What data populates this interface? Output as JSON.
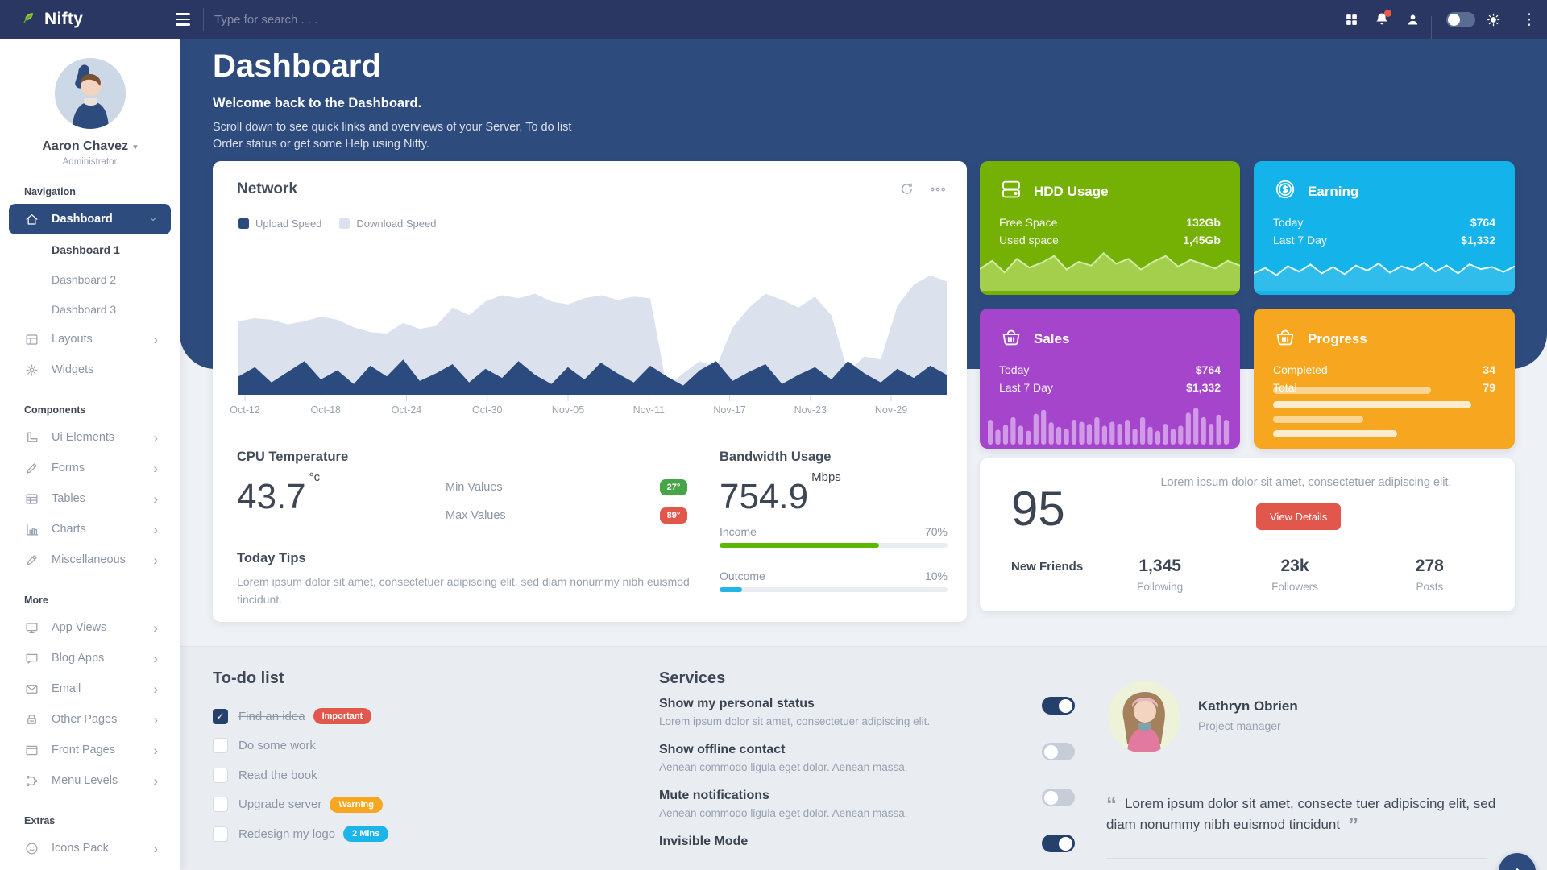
{
  "navbar": {
    "brand": "Nifty",
    "search_placeholder": "Type for search . . ."
  },
  "sidebar": {
    "user": {
      "name": "Aaron Chavez",
      "role": "Administrator"
    },
    "sections": [
      {
        "label": "Navigation",
        "items": [
          {
            "label": "Dashboard",
            "icon": "home",
            "active": true,
            "expanded": true,
            "children": [
              {
                "label": "Dashboard 1",
                "current": true
              },
              {
                "label": "Dashboard 2",
                "current": false
              },
              {
                "label": "Dashboard 3",
                "current": false
              }
            ]
          },
          {
            "label": "Layouts",
            "icon": "layout",
            "chevron": true
          },
          {
            "label": "Widgets",
            "icon": "widgets",
            "chevron": false
          }
        ]
      },
      {
        "label": "Components",
        "items": [
          {
            "label": "Ui Elements",
            "icon": "ruler",
            "chevron": true
          },
          {
            "label": "Forms",
            "icon": "pencil",
            "chevron": true
          },
          {
            "label": "Tables",
            "icon": "table",
            "chevron": true
          },
          {
            "label": "Charts",
            "icon": "chart",
            "chevron": true
          },
          {
            "label": "Miscellaneous",
            "icon": "pen",
            "chevron": true
          }
        ]
      },
      {
        "label": "More",
        "items": [
          {
            "label": "App Views",
            "icon": "monitor",
            "chevron": true
          },
          {
            "label": "Blog Apps",
            "icon": "chat",
            "chevron": true
          },
          {
            "label": "Email",
            "icon": "mail",
            "chevron": true
          },
          {
            "label": "Other Pages",
            "icon": "printer",
            "chevron": true
          },
          {
            "label": "Front Pages",
            "icon": "window",
            "chevron": true
          },
          {
            "label": "Menu Levels",
            "icon": "levels",
            "chevron": true
          }
        ]
      },
      {
        "label": "Extras",
        "items": [
          {
            "label": "Icons Pack",
            "icon": "smile",
            "chevron": true
          }
        ]
      }
    ]
  },
  "header": {
    "title": "Dashboard",
    "subtitle": "Welcome back to the Dashboard.",
    "description_lines": [
      "Scroll down to see quick links and overviews of your Server, To do list",
      "Order status or get some Help using Nifty."
    ]
  },
  "network": {
    "title": "Network"
  },
  "cpu": {
    "title": "CPU Temperature",
    "value": "43.7",
    "unit": "°c",
    "min_label": "Min Values",
    "min_value": "27°",
    "min_color": "#47a447",
    "max_label": "Max Values",
    "max_value": "89°",
    "max_color": "#e2574c"
  },
  "tips": {
    "title": "Today Tips",
    "text": "Lorem ipsum dolor sit amet, consectetuer adipiscing elit, sed diam nonummy nibh euismod tincidunt."
  },
  "bandwidth": {
    "title": "Bandwidth Usage",
    "value": "754.9",
    "unit": "Mbps",
    "bars": [
      {
        "label": "Income",
        "percent": 70,
        "percent_label": "70%",
        "color": "#5cb807"
      },
      {
        "label": "Outcome",
        "percent": 10,
        "percent_label": "10%",
        "color": "#23b4e8"
      }
    ]
  },
  "stat_cards": [
    {
      "title": "HDD Usage",
      "icon": "harddrive",
      "color": "#75b105",
      "rows": [
        {
          "label": "Free Space",
          "value": "132Gb"
        },
        {
          "label": "Used space",
          "value": "1,45Gb"
        }
      ]
    },
    {
      "title": "Earning",
      "icon": "coin",
      "color": "#14b4ea",
      "rows": [
        {
          "label": "Today",
          "value": "$764"
        },
        {
          "label": "Last 7 Day",
          "value": "$1,332"
        }
      ]
    },
    {
      "title": "Sales",
      "icon": "basket",
      "color": "#a445cb",
      "rows": [
        {
          "label": "Today",
          "value": "$764"
        },
        {
          "label": "Last 7 Day",
          "value": "$1,332"
        }
      ]
    },
    {
      "title": "Progress",
      "icon": "basket",
      "color": "#f6a71f",
      "rows": [
        {
          "label": "Completed",
          "value": "34"
        },
        {
          "label": "Total",
          "value": "79"
        }
      ]
    }
  ],
  "profile": {
    "big_value": "95",
    "big_label": "New Friends",
    "text": "Lorem ipsum dolor sit amet, consectetuer adipiscing elit.",
    "button": "View Details",
    "stats": [
      {
        "value": "1,345",
        "label": "Following"
      },
      {
        "value": "23k",
        "label": "Followers"
      },
      {
        "value": "278",
        "label": "Posts"
      }
    ]
  },
  "todo": {
    "title": "To-do list",
    "items": [
      {
        "label": "Find an idea",
        "checked": true,
        "done": true,
        "badge": {
          "text": "Important",
          "color": "#e2574c"
        }
      },
      {
        "label": "Do some work",
        "checked": false,
        "done": false,
        "badge": null
      },
      {
        "label": "Read the book",
        "checked": false,
        "done": false,
        "badge": null
      },
      {
        "label": "Upgrade server",
        "checked": false,
        "done": false,
        "badge": {
          "text": "Warning",
          "color": "#f6a71f"
        }
      },
      {
        "label": "Redesign my logo",
        "checked": false,
        "done": false,
        "badge": {
          "text": "2 Mins",
          "color": "#1cb5ea"
        }
      }
    ]
  },
  "services": {
    "title": "Services",
    "items": [
      {
        "title": "Show my personal status",
        "desc": "Lorem ipsum dolor sit amet, consectetuer adipiscing elit.",
        "on": true
      },
      {
        "title": "Show offline contact",
        "desc": "Aenean commodo ligula eget dolor. Aenean massa.",
        "on": false
      },
      {
        "title": "Mute notifications",
        "desc": "Aenean commodo ligula eget dolor. Aenean massa.",
        "on": false
      },
      {
        "title": "Invisible Mode",
        "desc": "",
        "on": true
      }
    ]
  },
  "testimonial": {
    "name": "Kathryn Obrien",
    "role": "Project manager",
    "quote": "Lorem ipsum dolor sit amet, consecte tuer adipiscing elit, sed diam nonummy nibh euismod tincidunt",
    "social": [
      "facebook",
      "twitter",
      "google-plus",
      "instagram"
    ]
  },
  "chart_data": [
    {
      "id": "network",
      "type": "area",
      "title": "Network",
      "legend": [
        {
          "name": "Upload Speed",
          "color": "#2b4a7e"
        },
        {
          "name": "Download Speed",
          "color": "#dbe2ee"
        }
      ],
      "x_labels": [
        "Oct-12",
        "Oct-18",
        "Oct-24",
        "Oct-30",
        "Nov-05",
        "Nov-11",
        "Nov-17",
        "Nov-23",
        "Nov-29"
      ],
      "series": [
        {
          "name": "Download Speed",
          "color": "#dbe2ee",
          "values": [
            48,
            50,
            49,
            46,
            48,
            51,
            49,
            44,
            41,
            40,
            47,
            43,
            45,
            57,
            52,
            61,
            65,
            63,
            66,
            61,
            59,
            63,
            65,
            62,
            64,
            63,
            5,
            14,
            22,
            18,
            44,
            57,
            66,
            62,
            57,
            64,
            52,
            15,
            25,
            23,
            58,
            72,
            78,
            74
          ]
        },
        {
          "name": "Upload Speed",
          "color": "#2b4a7e",
          "values": [
            12,
            18,
            8,
            15,
            22,
            10,
            16,
            7,
            19,
            12,
            23,
            9,
            14,
            20,
            8,
            17,
            11,
            22,
            13,
            7,
            18,
            10,
            21,
            14,
            8,
            19,
            12,
            6,
            16,
            22,
            9,
            15,
            20,
            7,
            13,
            18,
            10,
            22,
            14,
            8,
            17,
            11,
            19,
            13
          ]
        }
      ],
      "ylim": [
        0,
        100
      ],
      "grid": false,
      "legend_position": "top-left"
    },
    {
      "id": "hdd-sparkline",
      "type": "area",
      "color": "#a7d153",
      "values": [
        45,
        62,
        38,
        66,
        48,
        58,
        72,
        44,
        60,
        52,
        78,
        56,
        66,
        44,
        60,
        72,
        50,
        64,
        55,
        46,
        62,
        52
      ]
    },
    {
      "id": "earning-sparkline",
      "type": "line",
      "color": "#ffffff",
      "values": [
        40,
        55,
        35,
        60,
        45,
        65,
        40,
        58,
        38,
        62,
        48,
        68,
        42,
        60,
        50,
        70,
        45,
        62,
        40,
        66,
        52,
        58,
        44,
        60
      ]
    },
    {
      "id": "sales-sparkline",
      "type": "bar",
      "color": "#d9a9ec",
      "values": [
        50,
        30,
        40,
        55,
        38,
        28,
        62,
        70,
        45,
        36,
        32,
        50,
        46,
        42,
        55,
        38,
        46,
        42,
        50,
        32,
        55,
        36,
        28,
        42,
        32,
        38,
        64,
        74,
        55,
        42,
        60,
        50
      ]
    },
    {
      "id": "progress-bars",
      "type": "bar",
      "orientation": "horizontal",
      "values": [
        70,
        88,
        40,
        55
      ]
    }
  ]
}
